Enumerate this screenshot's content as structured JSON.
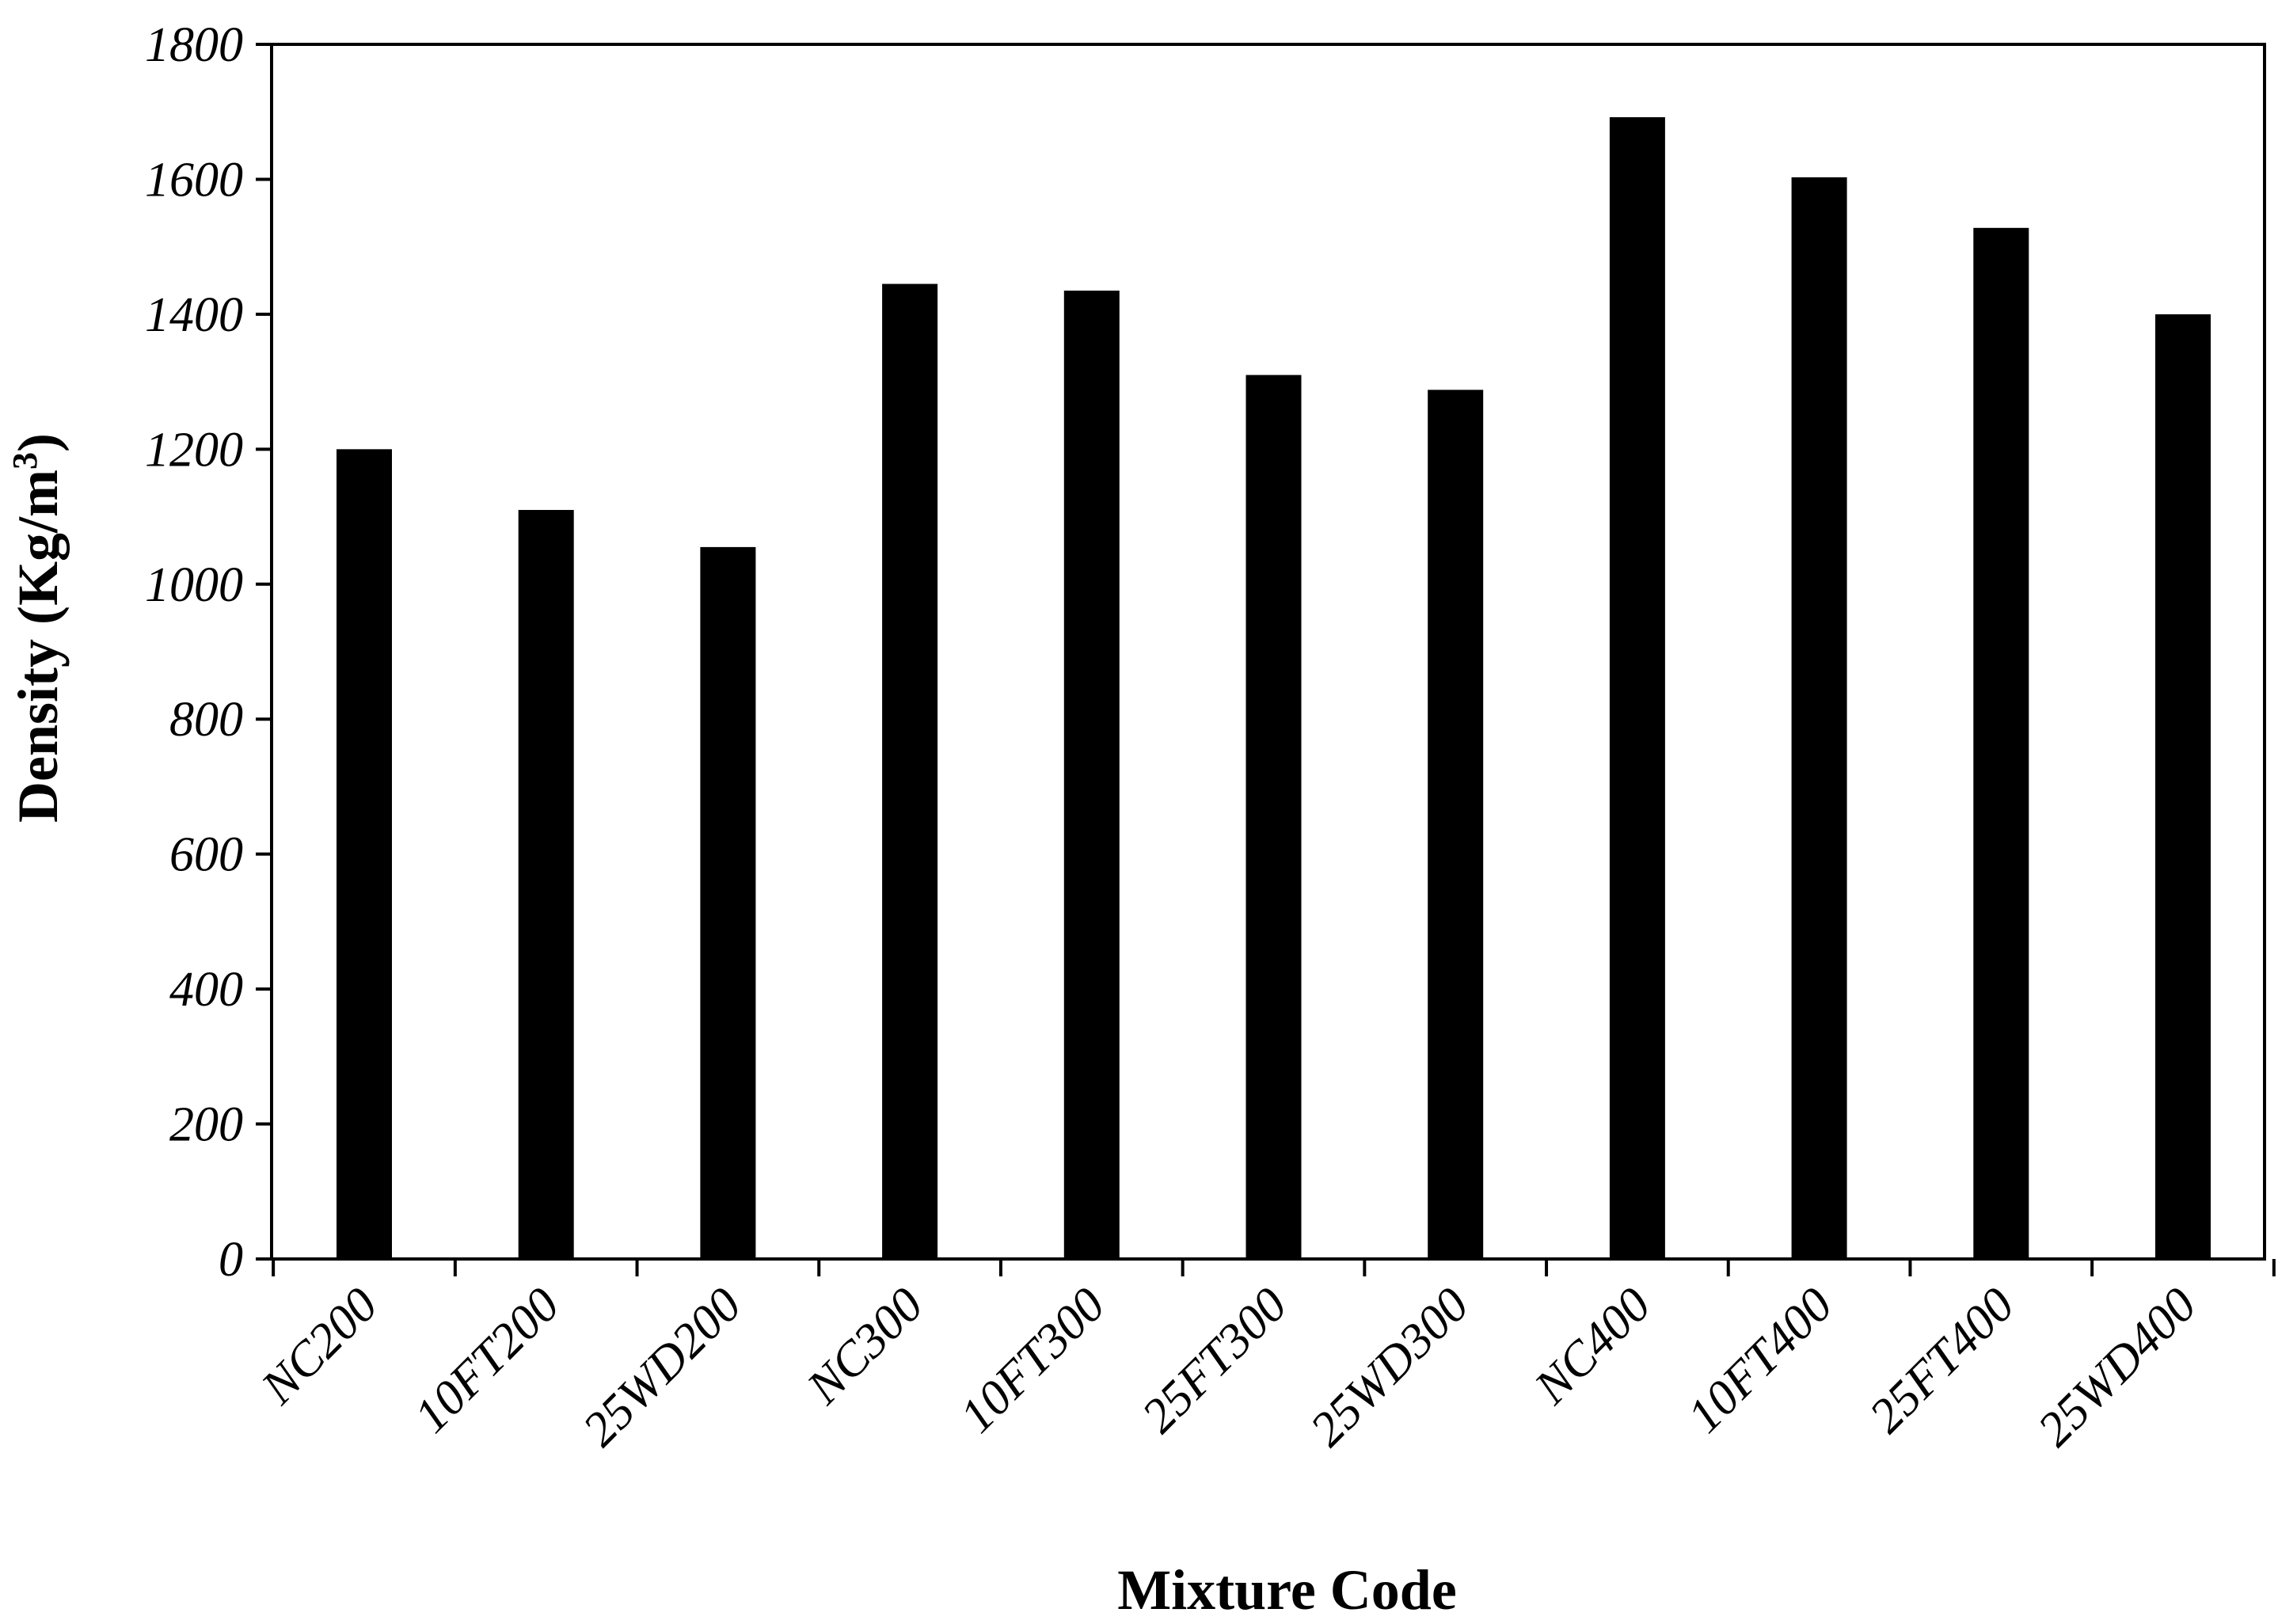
{
  "chart_data": {
    "type": "bar",
    "categories": [
      "NC200",
      "10FT200",
      "25WD200",
      "NC300",
      "10FT300",
      "25FT300",
      "25WD300",
      "NC400",
      "10FT400",
      "25FT400",
      "25WD400"
    ],
    "series": [
      {
        "values": [
          1200,
          1110,
          1055,
          1445,
          1435,
          1310,
          1288,
          1692,
          1603,
          1528,
          1400
        ]
      }
    ],
    "title": "",
    "xlabel": "Mixture Code",
    "ylabel_main": "Density (Kg/m",
    "ylabel_sup": "3",
    "ylabel_close": ")",
    "ylim": [
      0,
      1800
    ],
    "yticks": [
      0,
      200,
      400,
      600,
      800,
      1000,
      1200,
      1400,
      1600,
      1800
    ],
    "grid": false,
    "legend": "none",
    "bar_color": "#000000"
  }
}
